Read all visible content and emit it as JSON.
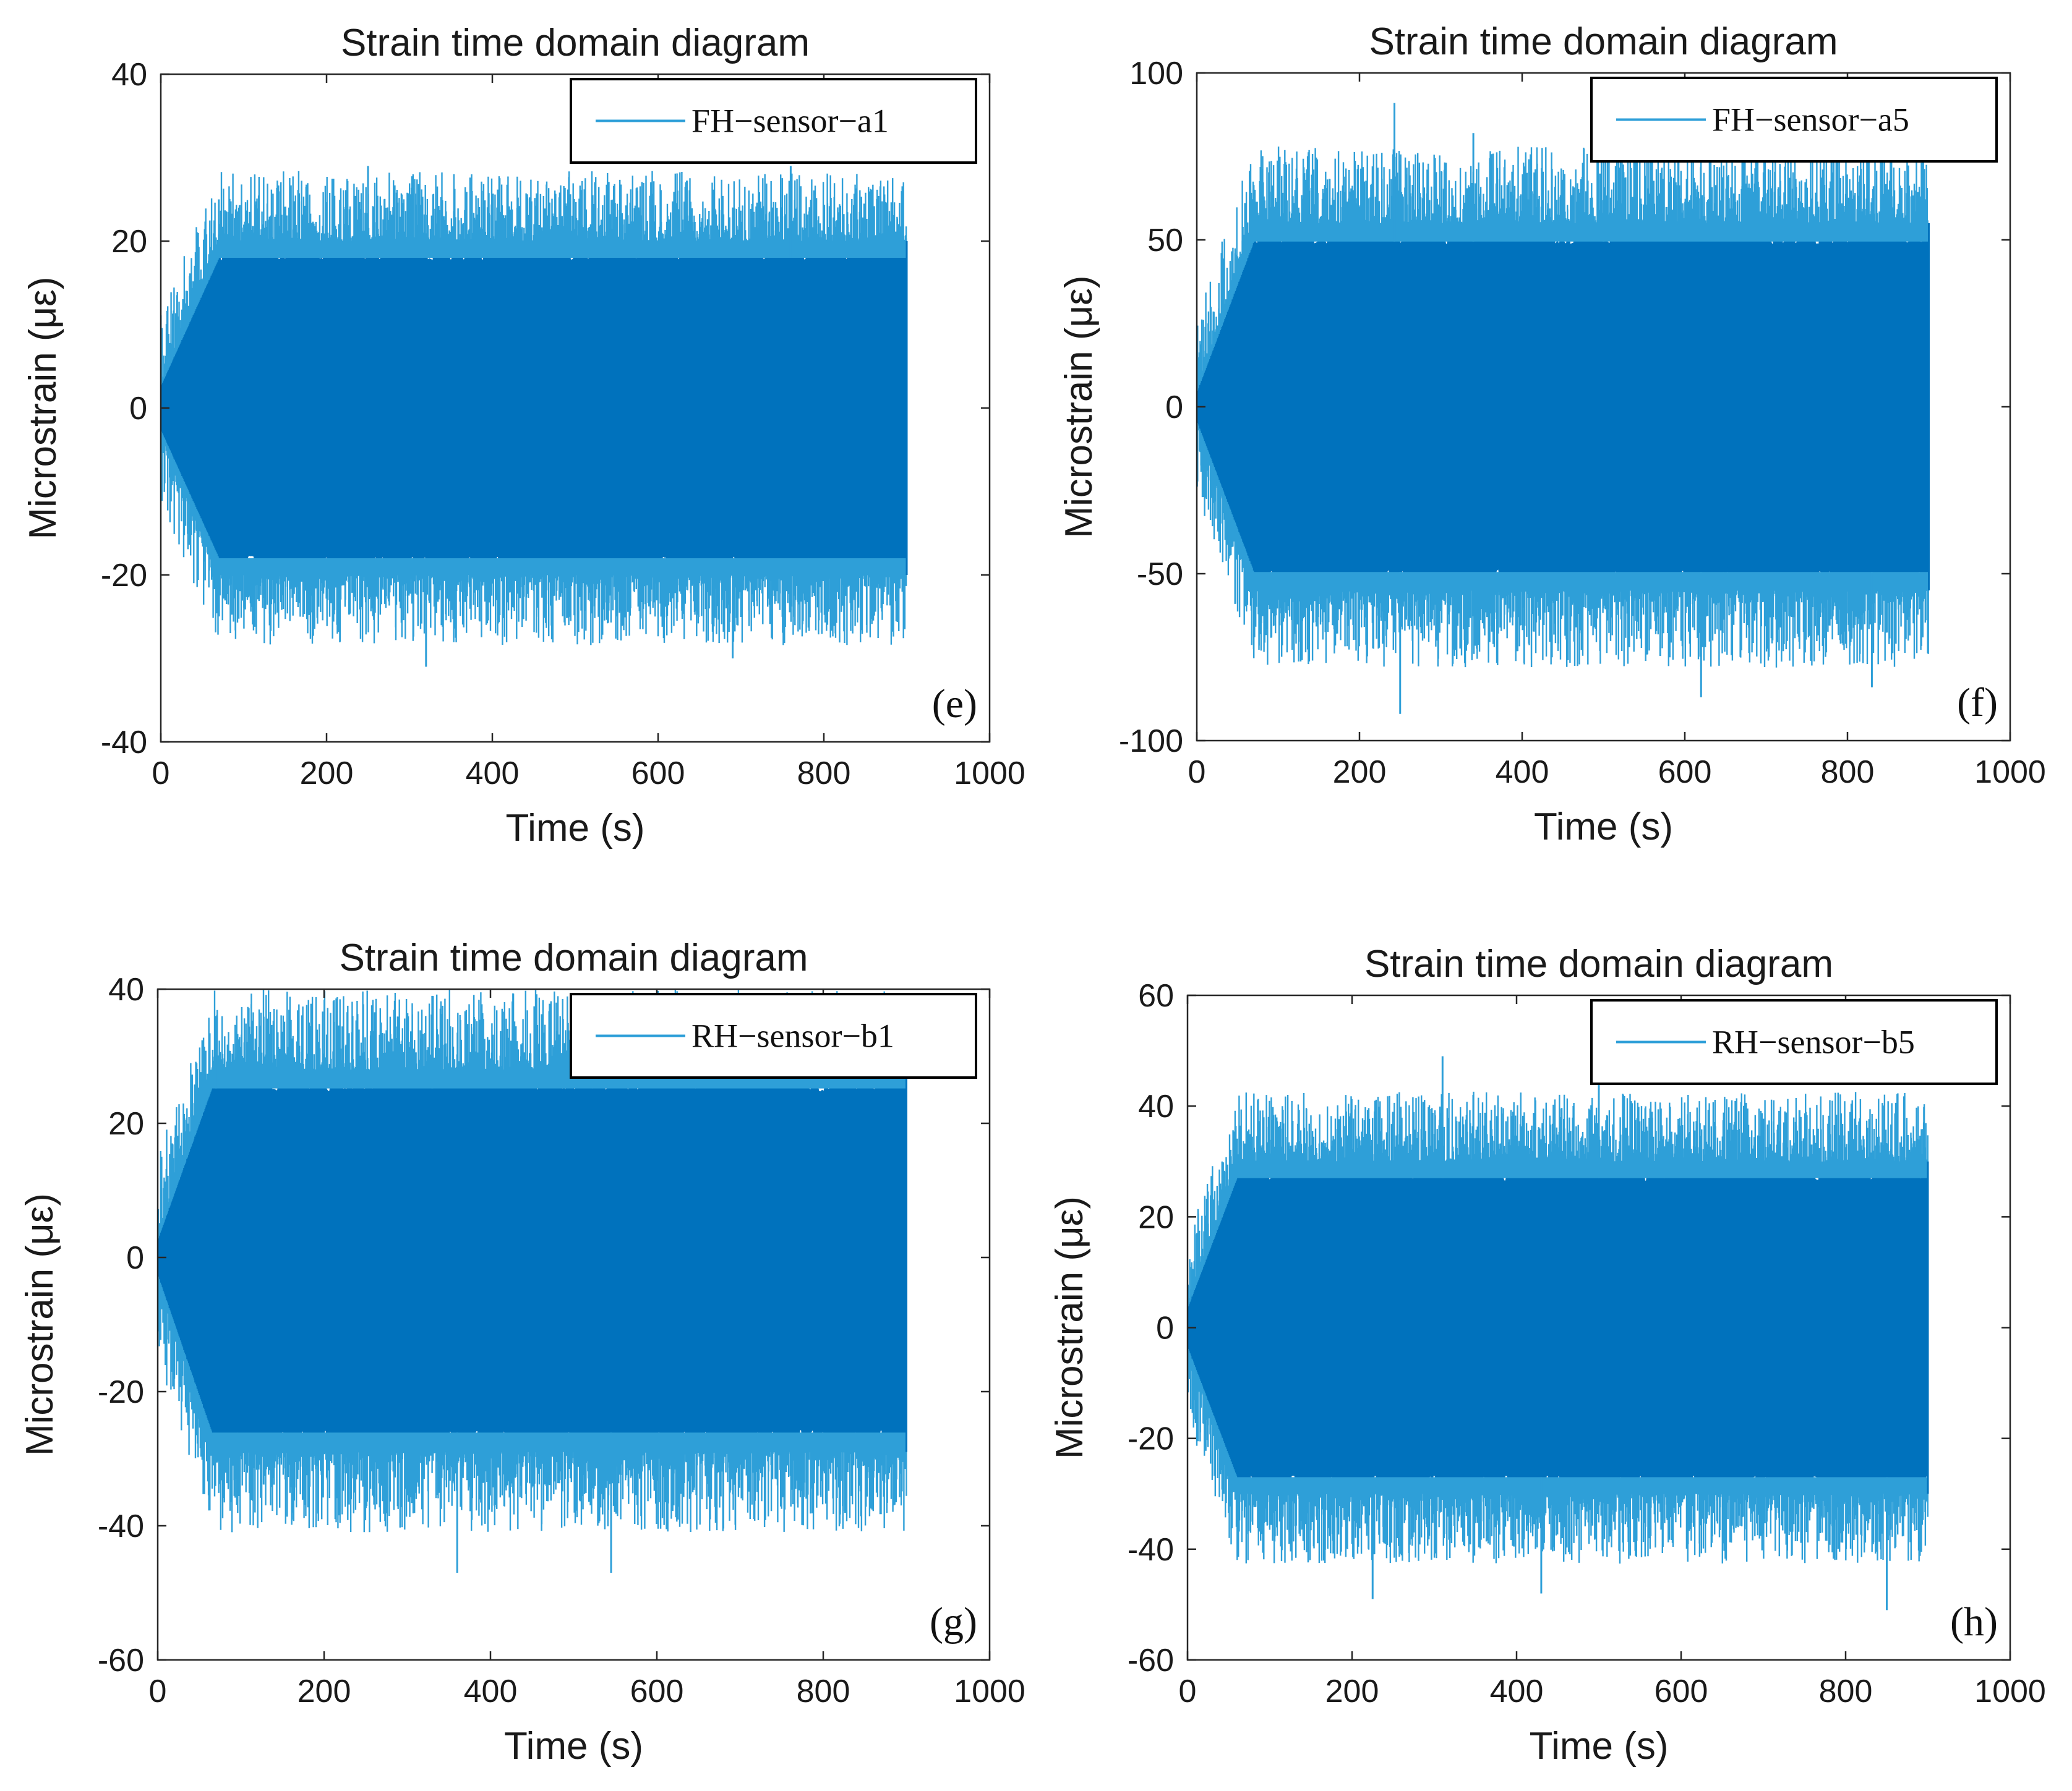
{
  "colors": {
    "series": "#0072BD",
    "spike": "#2E9FD8",
    "axis": "#262626",
    "background": "#ffffff"
  },
  "chart_data": [
    {
      "type": "line",
      "panel": "e",
      "title": "Strain time domain diagram",
      "xlabel": "Time (s)",
      "ylabel": "Microstrain (με)",
      "xlim": [
        0,
        1000
      ],
      "ylim": [
        -40,
        40
      ],
      "xticks": [
        0,
        200,
        400,
        600,
        800,
        1000
      ],
      "yticks": [
        -40,
        -20,
        0,
        20,
        40
      ],
      "xtick_labels": [
        "0",
        "200",
        "400",
        "600",
        "800",
        "1000"
      ],
      "ytick_labels": [
        "-40",
        "-20",
        "0",
        "20",
        "40"
      ],
      "legend_position": "top-right",
      "series": [
        {
          "name": "FH−sensor−a1",
          "t_end": 900,
          "ramp_end": 70,
          "envelope_start": 3,
          "envelope_upper": 20,
          "envelope_lower": -20,
          "max_peak": 29,
          "min_peak": -31,
          "peaks": [
            [
              70,
              25
            ],
            [
              250,
              29
            ],
            [
              320,
              -31
            ],
            [
              690,
              -30
            ],
            [
              760,
              29
            ]
          ]
        }
      ]
    },
    {
      "type": "line",
      "panel": "f",
      "title": "Strain time domain diagram",
      "xlabel": "Time (s)",
      "ylabel": "Microstrain (με)",
      "xlim": [
        0,
        1000
      ],
      "ylim": [
        -100,
        100
      ],
      "xticks": [
        0,
        200,
        400,
        600,
        800,
        1000
      ],
      "yticks": [
        -100,
        -50,
        0,
        50,
        100
      ],
      "xtick_labels": [
        "0",
        "200",
        "400",
        "600",
        "800",
        "1000"
      ],
      "ytick_labels": [
        "-100",
        "-50",
        "0",
        "50",
        "100"
      ],
      "legend_position": "top-right",
      "series": [
        {
          "name": "FH−sensor−a5",
          "t_end": 900,
          "ramp_end": 70,
          "envelope_start": 5,
          "envelope_upper": 55,
          "envelope_lower": -55,
          "max_peak": 91,
          "min_peak": -92,
          "peaks": [
            [
              243,
              91
            ],
            [
              250,
              -92
            ],
            [
              340,
              82
            ],
            [
              500,
              82
            ],
            [
              620,
              -87
            ],
            [
              830,
              -84
            ]
          ]
        }
      ]
    },
    {
      "type": "line",
      "panel": "g",
      "title": "Strain time domain diagram",
      "xlabel": "Time (s)",
      "ylabel": "Microstrain (με)",
      "xlim": [
        0,
        1000
      ],
      "ylim": [
        -60,
        40
      ],
      "xticks": [
        0,
        200,
        400,
        600,
        800,
        1000
      ],
      "yticks": [
        -60,
        -40,
        -20,
        0,
        20,
        40
      ],
      "xtick_labels": [
        "0",
        "200",
        "400",
        "600",
        "800",
        "1000"
      ],
      "ytick_labels": [
        "-60",
        "-40",
        "-20",
        "0",
        "20",
        "40"
      ],
      "legend_position": "top-right",
      "series": [
        {
          "name": "RH−sensor−b1",
          "t_end": 900,
          "ramp_end": 65,
          "envelope_start": 3,
          "envelope_upper": 28,
          "envelope_lower": -29,
          "max_peak": 39,
          "min_peak": -47,
          "peaks": [
            [
              70,
              36
            ],
            [
              330,
              39
            ],
            [
              360,
              -47
            ],
            [
              545,
              -47
            ]
          ]
        }
      ]
    },
    {
      "type": "line",
      "panel": "h",
      "title": "Strain time domain diagram",
      "xlabel": "Time (s)",
      "ylabel": "Microstrain (με)",
      "xlim": [
        0,
        1000
      ],
      "ylim": [
        -60,
        60
      ],
      "xticks": [
        0,
        200,
        400,
        600,
        800,
        1000
      ],
      "yticks": [
        -60,
        -40,
        -20,
        0,
        20,
        40,
        60
      ],
      "xtick_labels": [
        "0",
        "200",
        "400",
        "600",
        "800",
        "1000"
      ],
      "ytick_labels": [
        "-60",
        "-40",
        "-20",
        "0",
        "20",
        "40",
        "60"
      ],
      "legend_position": "top-right",
      "series": [
        {
          "name": "RH−sensor−b5",
          "t_end": 900,
          "ramp_end": 60,
          "envelope_start": 4,
          "envelope_upper": 30,
          "envelope_lower": -30,
          "max_peak": 49,
          "min_peak": -51,
          "peaks": [
            [
              225,
              -49
            ],
            [
              310,
              49
            ],
            [
              430,
              -48
            ],
            [
              500,
              47
            ],
            [
              850,
              -51
            ]
          ]
        }
      ]
    }
  ]
}
